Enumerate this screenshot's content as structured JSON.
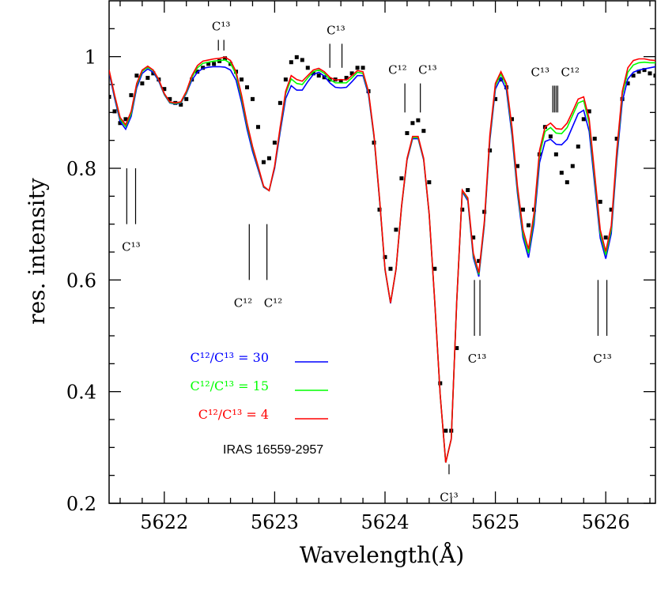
{
  "chart_data": {
    "type": "line",
    "xlabel": "Wavelength(Å)",
    "ylabel": "res. intensity",
    "xlim": [
      5621.5,
      5626.45
    ],
    "ylim": [
      0.2,
      1.1
    ],
    "xticks": [
      5622,
      5623,
      5624,
      5625,
      5626
    ],
    "yticks": [
      0.2,
      0.4,
      0.6,
      0.8,
      1
    ],
    "xminorticks": [
      5621.6,
      5621.8,
      5622.2,
      5622.4,
      5622.6,
      5622.8,
      5623.2,
      5623.4,
      5623.6,
      5623.8,
      5624.2,
      5624.4,
      5624.6,
      5624.8,
      5625.2,
      5625.4,
      5625.6,
      5625.8,
      5626.2,
      5626.4
    ],
    "yminorticks": [
      0.25,
      0.3,
      0.35,
      0.45,
      0.5,
      0.55,
      0.65,
      0.7,
      0.75,
      0.85,
      0.9,
      0.95,
      1.05
    ],
    "legend": "left",
    "annotation": "IRAS 16559-2957",
    "x": [
      5621.5,
      5621.55,
      5621.6,
      5621.65,
      5621.7,
      5621.75,
      5621.8,
      5621.85,
      5621.9,
      5621.95,
      5622,
      5622.05,
      5622.1,
      5622.15,
      5622.2,
      5622.25,
      5622.3,
      5622.35,
      5622.4,
      5622.45,
      5622.5,
      5622.55,
      5622.6,
      5622.65,
      5622.7,
      5622.75,
      5622.8,
      5622.85,
      5622.9,
      5622.95,
      5623,
      5623.05,
      5623.1,
      5623.15,
      5623.2,
      5623.25,
      5623.3,
      5623.35,
      5623.4,
      5623.45,
      5623.5,
      5623.55,
      5623.6,
      5623.65,
      5623.7,
      5623.75,
      5623.8,
      5623.85,
      5623.9,
      5623.95,
      5624,
      5624.05,
      5624.1,
      5624.15,
      5624.2,
      5624.25,
      5624.3,
      5624.35,
      5624.4,
      5624.45,
      5624.5,
      5624.55,
      5624.6,
      5624.65,
      5624.7,
      5624.75,
      5624.8,
      5624.85,
      5624.9,
      5624.95,
      5625,
      5625.05,
      5625.1,
      5625.15,
      5625.2,
      5625.25,
      5625.3,
      5625.35,
      5625.4,
      5625.45,
      5625.5,
      5625.55,
      5625.6,
      5625.65,
      5625.7,
      5625.75,
      5625.8,
      5625.85,
      5625.9,
      5625.95,
      5626,
      5626.05,
      5626.1,
      5626.15,
      5626.2,
      5626.25,
      5626.3,
      5626.35,
      5626.4,
      5626.45
    ],
    "series": [
      {
        "name": "C¹²/C¹³ = 30",
        "color": "#0000ff",
        "mark": "line",
        "values": [
          0.972,
          0.925,
          0.884,
          0.87,
          0.893,
          0.944,
          0.97,
          0.978,
          0.972,
          0.956,
          0.932,
          0.917,
          0.915,
          0.917,
          0.934,
          0.958,
          0.972,
          0.979,
          0.981,
          0.982,
          0.982,
          0.981,
          0.976,
          0.958,
          0.918,
          0.87,
          0.83,
          0.798,
          0.766,
          0.76,
          0.8,
          0.865,
          0.925,
          0.948,
          0.94,
          0.94,
          0.955,
          0.968,
          0.972,
          0.965,
          0.953,
          0.945,
          0.944,
          0.945,
          0.955,
          0.966,
          0.966,
          0.932,
          0.856,
          0.744,
          0.618,
          0.558,
          0.619,
          0.731,
          0.815,
          0.853,
          0.853,
          0.815,
          0.717,
          0.562,
          0.394,
          0.273,
          0.315,
          0.562,
          0.758,
          0.742,
          0.64,
          0.606,
          0.698,
          0.85,
          0.942,
          0.962,
          0.94,
          0.86,
          0.755,
          0.676,
          0.64,
          0.7,
          0.81,
          0.848,
          0.852,
          0.843,
          0.842,
          0.852,
          0.875,
          0.898,
          0.904,
          0.866,
          0.77,
          0.675,
          0.638,
          0.683,
          0.815,
          0.92,
          0.96,
          0.972,
          0.976,
          0.978,
          0.98,
          0.982
        ]
      },
      {
        "name": "C¹²/C¹³ = 15",
        "color": "#00ff00",
        "mark": "line",
        "values": [
          0.975,
          0.929,
          0.888,
          0.875,
          0.898,
          0.949,
          0.974,
          0.981,
          0.975,
          0.958,
          0.933,
          0.918,
          0.916,
          0.918,
          0.936,
          0.963,
          0.98,
          0.988,
          0.99,
          0.992,
          0.993,
          0.994,
          0.988,
          0.968,
          0.926,
          0.877,
          0.836,
          0.802,
          0.767,
          0.76,
          0.803,
          0.871,
          0.934,
          0.96,
          0.952,
          0.95,
          0.962,
          0.973,
          0.976,
          0.97,
          0.959,
          0.953,
          0.953,
          0.953,
          0.962,
          0.972,
          0.97,
          0.936,
          0.858,
          0.746,
          0.619,
          0.559,
          0.62,
          0.732,
          0.817,
          0.855,
          0.855,
          0.817,
          0.718,
          0.563,
          0.394,
          0.273,
          0.315,
          0.563,
          0.76,
          0.745,
          0.645,
          0.61,
          0.702,
          0.856,
          0.948,
          0.969,
          0.948,
          0.868,
          0.762,
          0.684,
          0.648,
          0.711,
          0.824,
          0.866,
          0.873,
          0.863,
          0.862,
          0.873,
          0.895,
          0.917,
          0.921,
          0.88,
          0.781,
          0.684,
          0.645,
          0.691,
          0.825,
          0.932,
          0.972,
          0.985,
          0.989,
          0.99,
          0.989,
          0.989
        ]
      },
      {
        "name": "C¹²/C¹³ = 4",
        "color": "#ff0000",
        "mark": "line",
        "values": [
          0.976,
          0.931,
          0.891,
          0.878,
          0.902,
          0.952,
          0.976,
          0.983,
          0.976,
          0.959,
          0.934,
          0.919,
          0.917,
          0.919,
          0.938,
          0.966,
          0.984,
          0.992,
          0.994,
          0.996,
          0.997,
          0.999,
          0.993,
          0.973,
          0.931,
          0.881,
          0.839,
          0.804,
          0.768,
          0.76,
          0.804,
          0.874,
          0.938,
          0.966,
          0.959,
          0.956,
          0.966,
          0.976,
          0.979,
          0.973,
          0.963,
          0.958,
          0.959,
          0.958,
          0.966,
          0.975,
          0.973,
          0.938,
          0.86,
          0.747,
          0.62,
          0.559,
          0.62,
          0.733,
          0.818,
          0.857,
          0.857,
          0.818,
          0.719,
          0.563,
          0.394,
          0.273,
          0.315,
          0.563,
          0.761,
          0.747,
          0.648,
          0.613,
          0.705,
          0.86,
          0.952,
          0.973,
          0.952,
          0.874,
          0.768,
          0.69,
          0.655,
          0.719,
          0.832,
          0.874,
          0.881,
          0.871,
          0.87,
          0.881,
          0.902,
          0.924,
          0.928,
          0.888,
          0.789,
          0.69,
          0.651,
          0.697,
          0.832,
          0.938,
          0.98,
          0.993,
          0.996,
          0.996,
          0.994,
          0.993
        ]
      },
      {
        "color": "#000000",
        "mark": "square",
        "values": [
          0.928,
          0.902,
          0.881,
          0.888,
          0.931,
          0.966,
          0.952,
          0.962,
          0.97,
          0.959,
          0.942,
          0.924,
          0.917,
          0.914,
          0.924,
          0.959,
          0.973,
          0.98,
          0.987,
          0.987,
          0.992,
          0.997,
          0.987,
          0.973,
          0.959,
          0.945,
          0.924,
          0.874,
          0.811,
          0.818,
          0.846,
          0.917,
          0.959,
          0.99,
          0.999,
          0.994,
          0.98,
          0.97,
          0.966,
          0.963,
          0.959,
          0.959,
          0.956,
          0.962,
          0.97,
          0.98,
          0.98,
          0.938,
          0.846,
          0.726,
          0.641,
          0.62,
          0.69,
          0.782,
          0.863,
          0.881,
          0.886,
          0.867,
          0.775,
          0.62,
          0.415,
          0.33,
          0.33,
          0.478,
          0.726,
          0.761,
          0.676,
          0.634,
          0.722,
          0.832,
          0.924,
          0.959,
          0.945,
          0.888,
          0.804,
          0.726,
          0.698,
          0.726,
          0.825,
          0.874,
          0.857,
          0.825,
          0.792,
          0.775,
          0.804,
          0.839,
          0.888,
          0.902,
          0.853,
          0.74,
          0.676,
          0.726,
          0.853,
          0.924,
          0.952,
          0.966,
          0.973,
          0.976,
          0.97,
          0.966
        ]
      }
    ],
    "line_ids": [
      {
        "labels": [
          "C¹³"
        ],
        "lines": [
          5621.66,
          5621.74
        ],
        "y": [
          0.8,
          0.7
        ],
        "side": "below"
      },
      {
        "labels": [
          "C¹³"
        ],
        "lines": [
          5622.49,
          5622.54
        ],
        "y": [
          1.03,
          1.011
        ],
        "side": "above"
      },
      {
        "labels": [
          "C¹²",
          "C¹²"
        ],
        "lines": [
          5622.77,
          5622.93
        ],
        "y": [
          0.7,
          0.6
        ],
        "side": "below"
      },
      {
        "labels": [
          "C¹³"
        ],
        "lines": [
          5623.5,
          5623.61
        ],
        "y": [
          1.023,
          0.98
        ],
        "side": "above"
      },
      {
        "labels": [
          "C¹²",
          "C¹³"
        ],
        "lines": [
          5624.18,
          5624.32
        ],
        "y": [
          0.952,
          0.9
        ],
        "side": "above"
      },
      {
        "labels": [
          "C¹³"
        ],
        "lines": [
          5624.58
        ],
        "y": [
          0.27,
          0.252
        ],
        "side": "below"
      },
      {
        "labels": [
          "C¹³"
        ],
        "lines": [
          5624.81,
          5624.86
        ],
        "y": [
          0.6,
          0.5
        ],
        "side": "below"
      },
      {
        "labels": [
          "C¹³",
          "C¹²"
        ],
        "lines": [
          5625.52,
          5625.535,
          5625.55,
          5625.565
        ],
        "y": [
          0.948,
          0.9
        ],
        "side": "above"
      },
      {
        "labels": [
          "C¹³"
        ],
        "lines": [
          5625.93,
          5626.01
        ],
        "y": [
          0.6,
          0.5
        ],
        "side": "below"
      }
    ]
  }
}
